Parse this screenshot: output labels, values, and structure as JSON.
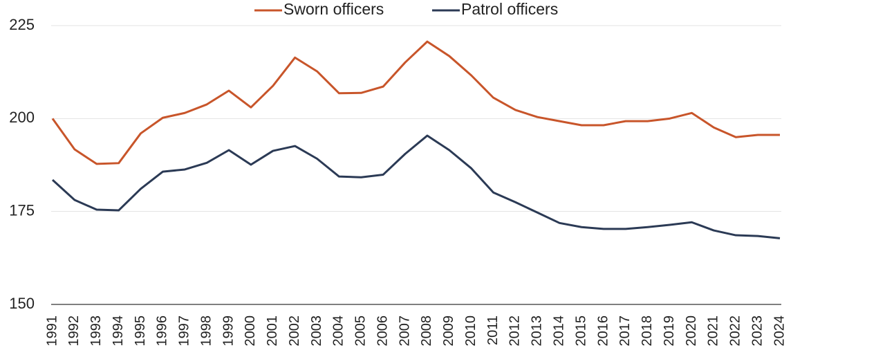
{
  "chart_data": {
    "type": "line",
    "categories": [
      "1991",
      "1992",
      "1993",
      "1994",
      "1995",
      "1996",
      "1997",
      "1998",
      "1999",
      "2000",
      "2001",
      "2002",
      "2003",
      "2004",
      "2005",
      "2006",
      "2007",
      "2008",
      "2009",
      "2010",
      "2011",
      "2012",
      "2013",
      "2014",
      "2015",
      "2016",
      "2017",
      "2018",
      "2019",
      "2020",
      "2021",
      "2022",
      "2023",
      "2024"
    ],
    "series": [
      {
        "name": "Sworn officers",
        "color": "#c8552a",
        "values": [
          200.0,
          191.7,
          187.8,
          188.0,
          196.0,
          200.2,
          201.5,
          203.8,
          207.5,
          203.0,
          208.8,
          216.4,
          212.7,
          206.8,
          206.9,
          208.6,
          215.1,
          220.7,
          216.8,
          211.6,
          205.6,
          202.3,
          200.4,
          199.3,
          198.2,
          198.2,
          199.3,
          199.3,
          200.0,
          201.5,
          197.6,
          195.0,
          195.6,
          195.6
        ]
      },
      {
        "name": "Patrol officers",
        "color": "#2b3a55",
        "values": [
          183.5,
          178.1,
          175.5,
          175.3,
          181.1,
          185.7,
          186.3,
          188.1,
          191.5,
          187.6,
          191.3,
          192.6,
          189.2,
          184.4,
          184.2,
          184.9,
          190.5,
          195.4,
          191.5,
          186.6,
          180.1,
          177.5,
          174.7,
          171.9,
          170.8,
          170.3,
          170.3,
          170.8,
          171.4,
          172.1,
          169.9,
          168.6,
          168.4,
          167.8
        ]
      }
    ],
    "ylim": [
      150,
      225
    ],
    "yticks": [
      150,
      175,
      200,
      225
    ],
    "grid": true,
    "legend": "top"
  }
}
